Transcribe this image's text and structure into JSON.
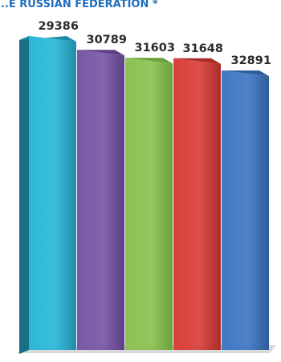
{
  "chart_data": {
    "type": "bar",
    "title": "...E RUSSIAN FEDERATION *",
    "values": [
      29386,
      30789,
      31603,
      31648,
      32891
    ],
    "colors": [
      "#2bb8d8",
      "#7a57a6",
      "#8cc152",
      "#d9403b",
      "#3f78c4"
    ],
    "top_colors": [
      "#1e8ca8",
      "#5c3f85",
      "#6aa13a",
      "#a82c28",
      "#2f5c9a"
    ],
    "side_colors": [
      "#1a6f87",
      "#4a336b",
      "#56832f",
      "#8a2320",
      "#264a7c"
    ],
    "xlabel": "",
    "ylabel": "",
    "grid": false,
    "legend": "none"
  }
}
